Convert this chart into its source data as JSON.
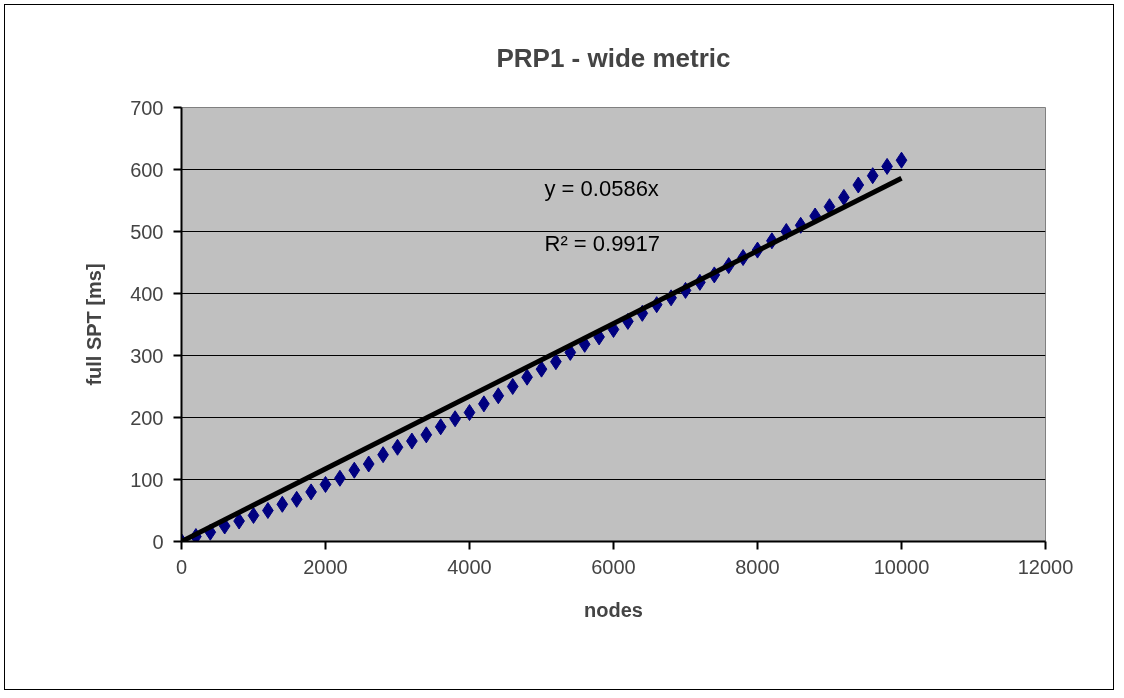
{
  "chart_data": {
    "type": "scatter",
    "title": "PRP1 - wide metric",
    "xlabel": "nodes",
    "ylabel": "full SPT [ms]",
    "xlim": [
      0,
      12000
    ],
    "xticks": [
      0,
      2000,
      4000,
      6000,
      8000,
      10000,
      12000
    ],
    "ylim": [
      0,
      700
    ],
    "yticks": [
      0,
      100,
      200,
      300,
      400,
      500,
      600,
      700
    ],
    "grid": "y",
    "annotations": [
      "y = 0.0586x",
      "R² = 0.9917"
    ],
    "series": [
      {
        "marker": "diamond",
        "color": "#000080",
        "x": [
          0,
          200,
          400,
          600,
          800,
          1000,
          1200,
          1400,
          1600,
          1800,
          2000,
          2200,
          2400,
          2600,
          2800,
          3000,
          3200,
          3400,
          3600,
          3800,
          4000,
          4200,
          4400,
          4600,
          4800,
          5000,
          5200,
          5400,
          5600,
          5800,
          6000,
          6200,
          6400,
          6600,
          6800,
          7000,
          7200,
          7400,
          7600,
          7800,
          8000,
          8200,
          8400,
          8600,
          8800,
          9000,
          9200,
          9400,
          9600,
          9800,
          10000
        ],
        "values": [
          0,
          8,
          15,
          25,
          33,
          42,
          50,
          60,
          68,
          80,
          92,
          102,
          115,
          125,
          140,
          152,
          162,
          172,
          185,
          198,
          208,
          222,
          235,
          250,
          265,
          278,
          290,
          305,
          318,
          330,
          342,
          355,
          368,
          382,
          393,
          405,
          418,
          430,
          445,
          458,
          470,
          485,
          500,
          510,
          525,
          540,
          555,
          575,
          590,
          605,
          615
        ]
      },
      {
        "type": "line",
        "color": "#000000",
        "x": [
          0,
          10000
        ],
        "values": [
          0,
          586
        ]
      }
    ]
  }
}
